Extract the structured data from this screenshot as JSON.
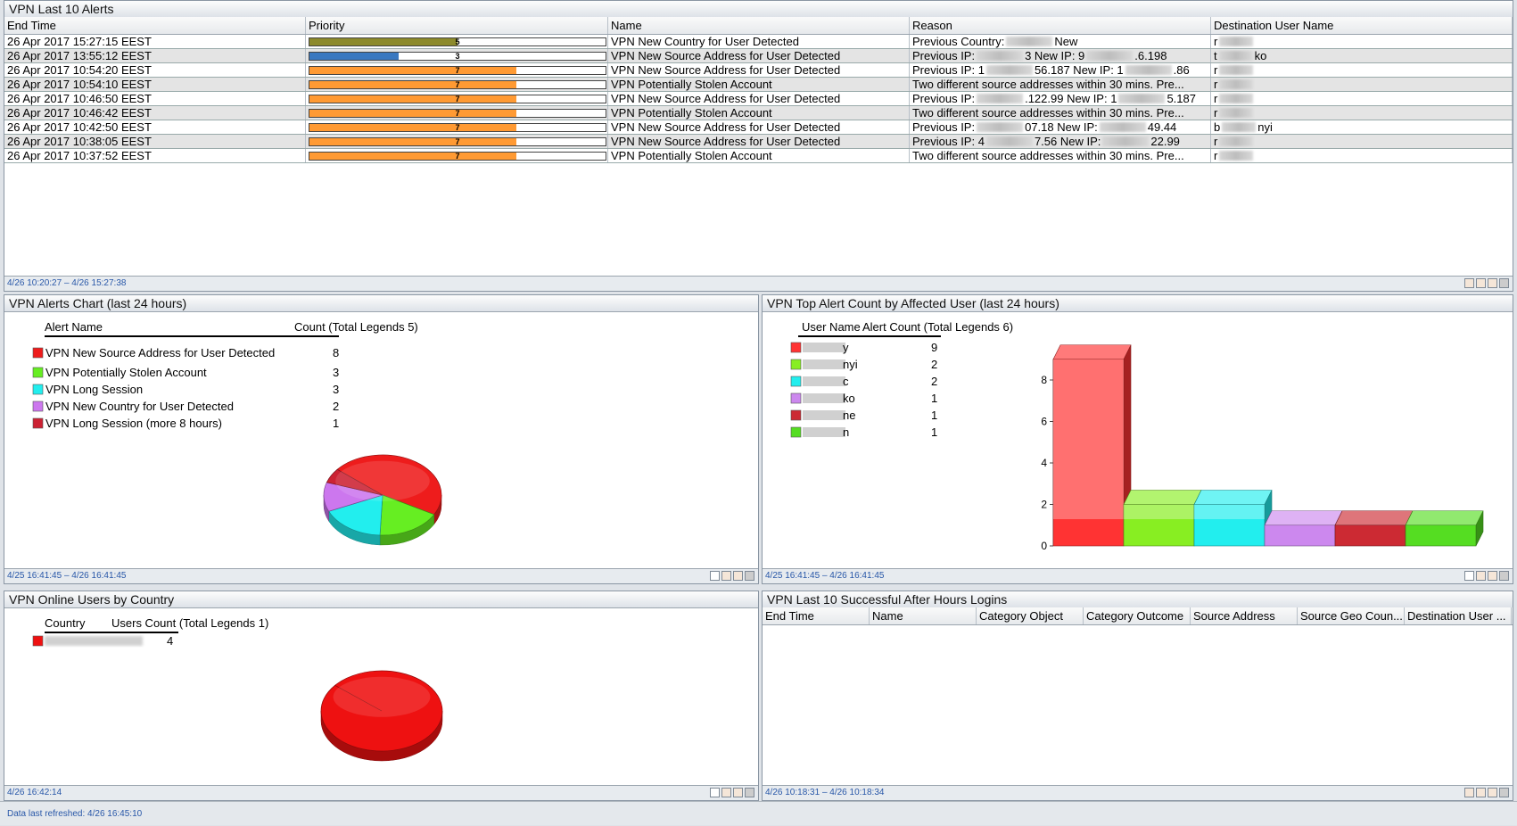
{
  "status": "Data last refreshed: 4/26 16:45:10",
  "alerts": {
    "title": "VPN Last 10 Alerts",
    "columns": [
      "End Time",
      "Priority",
      "Name",
      "Reason",
      "Destination User Name"
    ],
    "rows": [
      {
        "end_time": "26 Apr 2017 15:27:15 EEST",
        "priority": 5,
        "priority_color": "#8c8a2c",
        "name": "VPN New Country for User Detected",
        "reason": [
          "Previous Country:",
          "New"
        ],
        "user": [
          "r"
        ]
      },
      {
        "end_time": "26 Apr 2017 13:55:12 EEST",
        "priority": 3,
        "priority_color": "#3a78c0",
        "name": "VPN New Source Address for User Detected",
        "reason": [
          "Previous IP:",
          "3 New IP: 9",
          ".6.198"
        ],
        "user": [
          "t",
          "ko"
        ]
      },
      {
        "end_time": "26 Apr 2017 10:54:20 EEST",
        "priority": 7,
        "priority_color": "#ff9a33",
        "name": "VPN New Source Address for User Detected",
        "reason": [
          "Previous IP: 1",
          "56.187 New IP: 1",
          ".86"
        ],
        "user": [
          "r"
        ]
      },
      {
        "end_time": "26 Apr 2017 10:54:10 EEST",
        "priority": 7,
        "priority_color": "#ff9a33",
        "name": "VPN Potentially Stolen Account",
        "reason": [
          "Two different source addresses within 30 mins. Pre..."
        ],
        "user": [
          "r"
        ]
      },
      {
        "end_time": "26 Apr 2017 10:46:50 EEST",
        "priority": 7,
        "priority_color": "#ff9a33",
        "name": "VPN New Source Address for User Detected",
        "reason": [
          "Previous IP:",
          ".122.99 New IP: 1",
          "5.187"
        ],
        "user": [
          "r"
        ]
      },
      {
        "end_time": "26 Apr 2017 10:46:42 EEST",
        "priority": 7,
        "priority_color": "#ff9a33",
        "name": "VPN Potentially Stolen Account",
        "reason": [
          "Two different source addresses within 30 mins. Pre..."
        ],
        "user": [
          "r"
        ]
      },
      {
        "end_time": "26 Apr 2017 10:42:50 EEST",
        "priority": 7,
        "priority_color": "#ff9a33",
        "name": "VPN New Source Address for User Detected",
        "reason": [
          "Previous IP:",
          "07.18 New IP:",
          "49.44"
        ],
        "user": [
          "b",
          "nyi"
        ]
      },
      {
        "end_time": "26 Apr 2017 10:38:05 EEST",
        "priority": 7,
        "priority_color": "#ff9a33",
        "name": "VPN New Source Address for User Detected",
        "reason": [
          "Previous IP: 4",
          "7.56 New IP:",
          "22.99"
        ],
        "user": [
          "r"
        ]
      },
      {
        "end_time": "26 Apr 2017 10:37:52 EEST",
        "priority": 7,
        "priority_color": "#ff9a33",
        "name": "VPN Potentially Stolen Account",
        "reason": [
          "Two different source addresses within 30 mins. Pre..."
        ],
        "user": [
          "r"
        ]
      }
    ],
    "footer": "4/26 10:20:27 – 4/26 15:27:38"
  },
  "alerts_chart": {
    "type": "pie",
    "title": "VPN Alerts Chart (last 24 hours)",
    "headers": [
      "Alert Name",
      "Count (Total Legends 5)"
    ],
    "categories": [
      "VPN New Source Address for User Detected",
      "VPN Potentially Stolen Account",
      "VPN Long Session",
      "VPN New Country for User Detected",
      "VPN Long Session (more 8 hours)"
    ],
    "values": [
      8,
      3,
      3,
      2,
      1
    ],
    "colors": [
      "#ee1c1c",
      "#66ee22",
      "#22eeee",
      "#cc77ee",
      "#cc2233"
    ],
    "footer": "4/25 16:41:45 – 4/26 16:41:45"
  },
  "user_chart": {
    "type": "bar",
    "title": "VPN Top Alert Count by Affected User (last 24 hours)",
    "headers": [
      "User Name",
      "Alert Count (Total Legends 6)"
    ],
    "categories": [
      "y",
      "nyi",
      "c",
      "ko",
      "ne",
      "n"
    ],
    "values": [
      9,
      2,
      2,
      1,
      1,
      1
    ],
    "colors": [
      "#ff3333",
      "#88ee22",
      "#22eeee",
      "#cc88ee",
      "#cc2a33",
      "#55dd22"
    ],
    "ylim": [
      0,
      9
    ],
    "yticks": [
      0,
      2,
      4,
      6,
      8
    ],
    "footer": "4/25 16:41:45 – 4/26 16:41:45"
  },
  "country_chart": {
    "type": "pie",
    "title": "VPN Online Users by Country",
    "headers": [
      "Country",
      "Users Count (Total Legends 1)"
    ],
    "categories": [
      null
    ],
    "values": [
      4
    ],
    "colors": [
      "#ee1111"
    ],
    "footer": "4/26 16:42:14"
  },
  "logins": {
    "title": "VPN Last 10 Successful After Hours Logins",
    "columns": [
      "End Time",
      "Name",
      "Category Object",
      "Category Outcome",
      "Source Address",
      "Source Geo Coun...",
      "Destination User ..."
    ],
    "footer": "4/26 10:18:31 – 4/26 10:18:34"
  }
}
